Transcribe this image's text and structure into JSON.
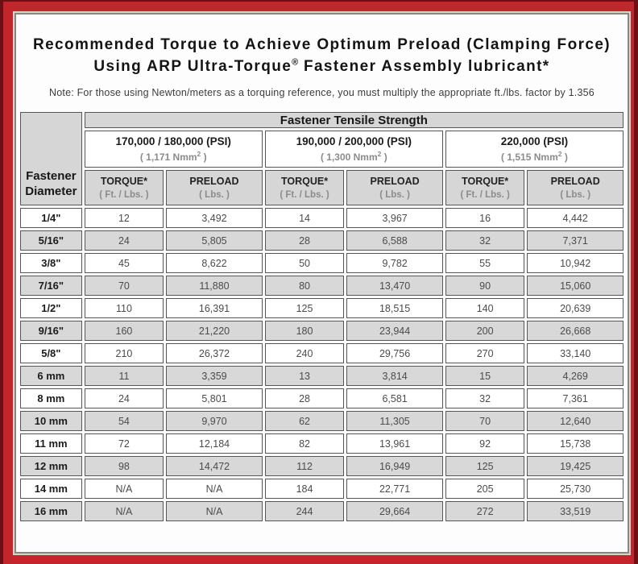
{
  "colors": {
    "frame_red": "#c2262c",
    "frame_maroon": "#6b1116",
    "cell_gray": "#d6d6d6",
    "border_dark": "#565656"
  },
  "title": {
    "line1": "Recommended Torque to Achieve Optimum Preload (Clamping Force)",
    "line2_pre": "Using ARP Ultra-Torque",
    "line2_reg": "®",
    "line2_post": " Fastener Assembly lubricant*"
  },
  "note": "Note: For those using Newton/meters as a torquing reference, you must multiply the appropriate ft./lbs. factor by 1.356",
  "table": {
    "corner_header": "Fastener Diameter",
    "tensile_header": "Fastener Tensile Strength",
    "groups": [
      {
        "psi": "170,000 / 180,000 (PSI)",
        "nmm_open": "( 1,171 Nmm",
        "nmm_sup": "2",
        "nmm_close": " )",
        "torque_label": "TORQUE*",
        "torque_sub": "( Ft. / Lbs. )",
        "preload_label": "PRELOAD",
        "preload_sub": "( Lbs. )"
      },
      {
        "psi": "190,000 / 200,000 (PSI)",
        "nmm_open": "( 1,300 Nmm",
        "nmm_sup": "2",
        "nmm_close": " )",
        "torque_label": "TORQUE*",
        "torque_sub": "( Ft. / Lbs. )",
        "preload_label": "PRELOAD",
        "preload_sub": "( Lbs. )"
      },
      {
        "psi": "220,000 (PSI)",
        "nmm_open": "( 1,515 Nmm",
        "nmm_sup": "2",
        "nmm_close": " )",
        "torque_label": "TORQUE*",
        "torque_sub": "( Ft. / Lbs. )",
        "preload_label": "PRELOAD",
        "preload_sub": "( Lbs. )"
      }
    ],
    "rows": [
      {
        "d": "1/4\"",
        "v": [
          "12",
          "3,492",
          "14",
          "3,967",
          "16",
          "4,442"
        ]
      },
      {
        "d": "5/16\"",
        "v": [
          "24",
          "5,805",
          "28",
          "6,588",
          "32",
          "7,371"
        ]
      },
      {
        "d": "3/8\"",
        "v": [
          "45",
          "8,622",
          "50",
          "9,782",
          "55",
          "10,942"
        ]
      },
      {
        "d": "7/16\"",
        "v": [
          "70",
          "11,880",
          "80",
          "13,470",
          "90",
          "15,060"
        ]
      },
      {
        "d": "1/2\"",
        "v": [
          "110",
          "16,391",
          "125",
          "18,515",
          "140",
          "20,639"
        ]
      },
      {
        "d": "9/16\"",
        "v": [
          "160",
          "21,220",
          "180",
          "23,944",
          "200",
          "26,668"
        ]
      },
      {
        "d": "5/8\"",
        "v": [
          "210",
          "26,372",
          "240",
          "29,756",
          "270",
          "33,140"
        ]
      },
      {
        "d": "6 mm",
        "v": [
          "11",
          "3,359",
          "13",
          "3,814",
          "15",
          "4,269"
        ]
      },
      {
        "d": "8 mm",
        "v": [
          "24",
          "5,801",
          "28",
          "6,581",
          "32",
          "7,361"
        ]
      },
      {
        "d": "10 mm",
        "v": [
          "54",
          "9,970",
          "62",
          "11,305",
          "70",
          "12,640"
        ]
      },
      {
        "d": "11 mm",
        "v": [
          "72",
          "12,184",
          "82",
          "13,961",
          "92",
          "15,738"
        ]
      },
      {
        "d": "12 mm",
        "v": [
          "98",
          "14,472",
          "112",
          "16,949",
          "125",
          "19,425"
        ]
      },
      {
        "d": "14 mm",
        "v": [
          "N/A",
          "N/A",
          "184",
          "22,771",
          "205",
          "25,730"
        ]
      },
      {
        "d": "16 mm",
        "v": [
          "N/A",
          "N/A",
          "244",
          "29,664",
          "272",
          "33,519"
        ]
      }
    ]
  }
}
